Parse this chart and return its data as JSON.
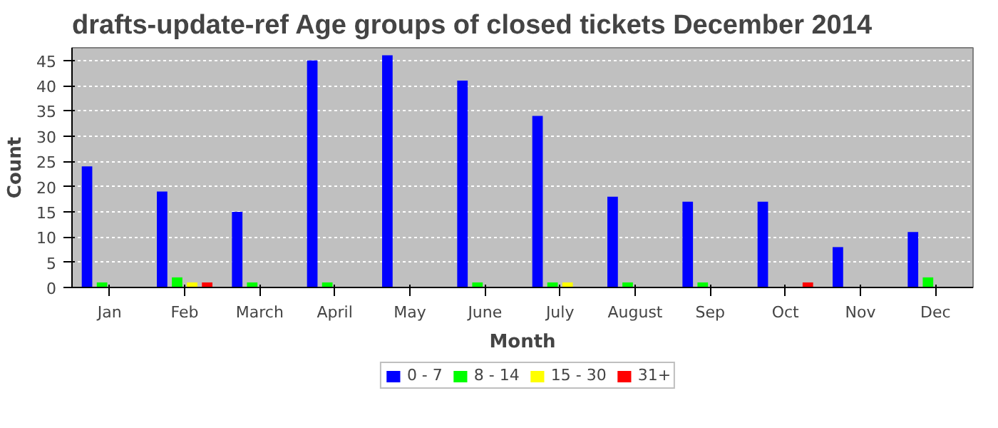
{
  "chart_data": {
    "type": "bar",
    "title": "drafts-update-ref Age groups of closed tickets December 2014",
    "xlabel": "Month",
    "ylabel": "Count",
    "categories": [
      "Jan",
      "Feb",
      "March",
      "April",
      "May",
      "June",
      "July",
      "August",
      "Sep",
      "Oct",
      "Nov",
      "Dec"
    ],
    "series": [
      {
        "name": "0 - 7",
        "color": "#0000ff",
        "values": [
          24,
          19,
          15,
          45,
          46,
          41,
          34,
          18,
          17,
          17,
          8,
          11
        ]
      },
      {
        "name": "8 - 14",
        "color": "#00ff00",
        "values": [
          1,
          2,
          1,
          1,
          0,
          1,
          1,
          1,
          1,
          0,
          0,
          2
        ]
      },
      {
        "name": "15 - 30",
        "color": "#ffff00",
        "values": [
          0,
          1,
          0,
          0,
          0,
          0,
          1,
          0,
          0,
          0,
          0,
          0
        ]
      },
      {
        "name": "31+",
        "color": "#ff0000",
        "values": [
          0,
          1,
          0,
          0,
          0,
          0,
          0,
          0,
          0,
          1,
          0,
          0
        ]
      }
    ],
    "ylim": [
      0,
      47.5
    ],
    "yticks": [
      0,
      5,
      10,
      15,
      20,
      25,
      30,
      35,
      40,
      45
    ],
    "grid": "y",
    "legend": "bottom"
  }
}
